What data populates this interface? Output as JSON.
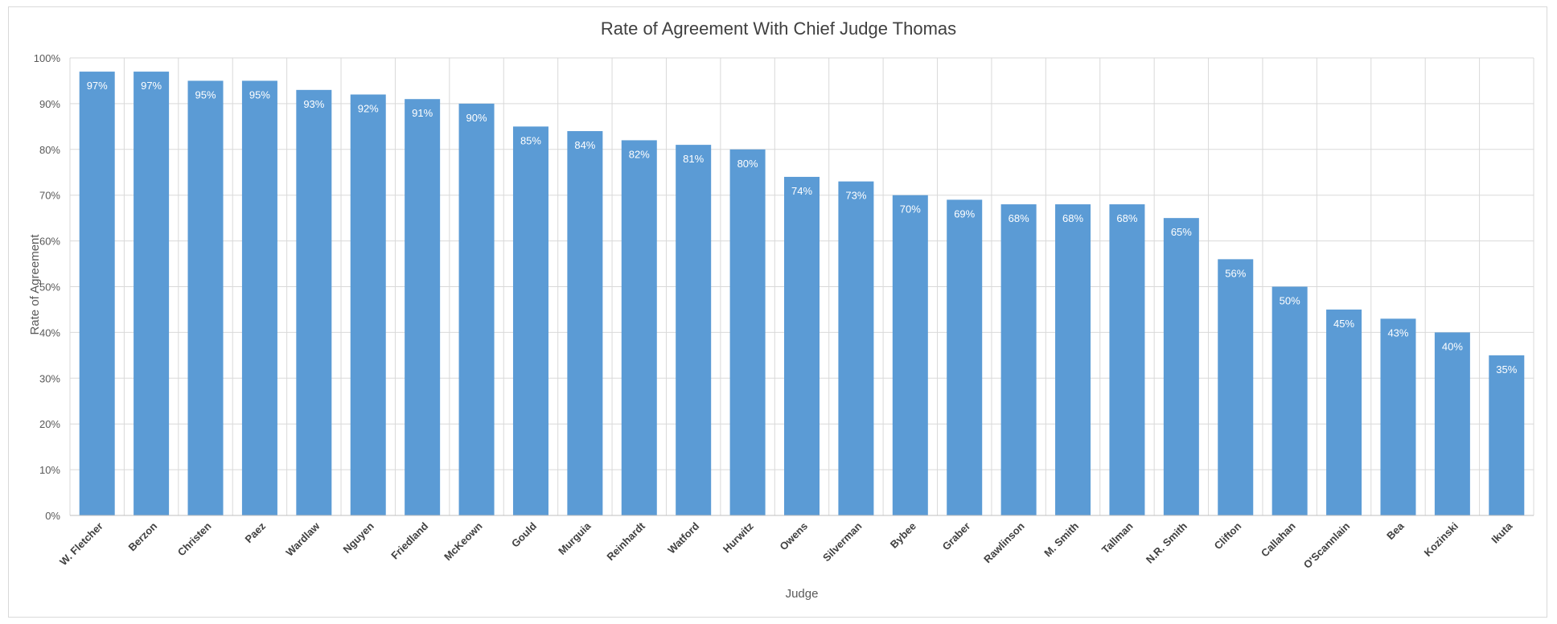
{
  "chart_data": {
    "type": "bar",
    "title": "Rate of Agreement With Chief Judge Thomas",
    "xlabel": "Judge",
    "ylabel": "Rate of Agreement",
    "ylim": [
      0,
      100
    ],
    "ytick_step": 10,
    "ytick_suffix": "%",
    "grid": "both",
    "legend": "none",
    "bar_color": "#5B9BD5",
    "categories": [
      "W. Fletcher",
      "Berzon",
      "Christen",
      "Paez",
      "Wardlaw",
      "Nguyen",
      "Friedland",
      "McKeown",
      "Gould",
      "Murguia",
      "Reinhardt",
      "Watford",
      "Hurwitz",
      "Owens",
      "Silverman",
      "Bybee",
      "Graber",
      "Rawlinson",
      "M. Smith",
      "Tallman",
      "N.R. Smith",
      "Clifton",
      "Callahan",
      "O'Scannlain",
      "Bea",
      "Kozinski",
      "Ikuta"
    ],
    "values": [
      97,
      97,
      95,
      95,
      93,
      92,
      91,
      90,
      85,
      84,
      82,
      81,
      80,
      74,
      73,
      70,
      69,
      68,
      68,
      68,
      65,
      56,
      50,
      45,
      43,
      40,
      35
    ],
    "data_labels": [
      "97%",
      "97%",
      "95%",
      "95%",
      "93%",
      "92%",
      "91%",
      "90%",
      "85%",
      "84%",
      "82%",
      "81%",
      "80%",
      "74%",
      "73%",
      "70%",
      "69%",
      "68%",
      "68%",
      "68%",
      "65%",
      "56%",
      "50%",
      "45%",
      "43%",
      "40%",
      "35%"
    ]
  }
}
